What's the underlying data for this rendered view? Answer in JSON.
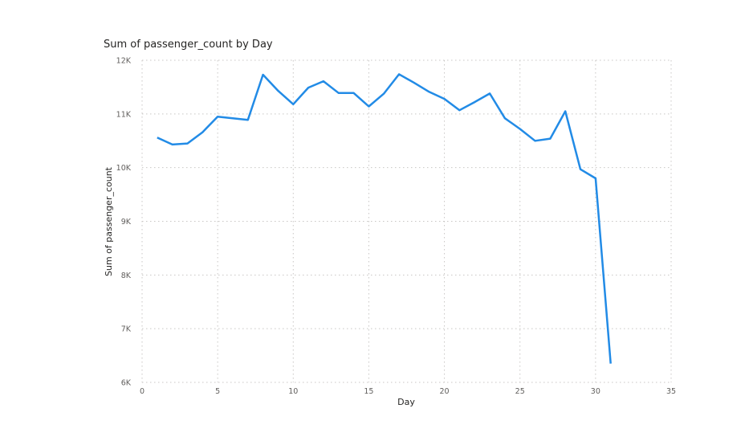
{
  "chart_data": {
    "type": "line",
    "title": "Sum of passenger_count by Day",
    "xlabel": "Day",
    "ylabel": "Sum of passenger_count",
    "xlim": [
      0,
      35
    ],
    "ylim": [
      6000,
      12000
    ],
    "x_ticks": [
      0,
      5,
      10,
      15,
      20,
      25,
      30,
      35
    ],
    "x_tick_labels": [
      "0",
      "5",
      "10",
      "15",
      "20",
      "25",
      "30",
      "35"
    ],
    "y_ticks": [
      6000,
      7000,
      8000,
      9000,
      10000,
      11000,
      12000
    ],
    "y_tick_labels": [
      "6K",
      "7K",
      "8K",
      "9K",
      "10K",
      "11K",
      "12K"
    ],
    "grid": true,
    "legend": "none",
    "series": [
      {
        "color": "#228be6",
        "x": [
          1,
          2,
          3,
          4,
          5,
          6,
          7,
          8,
          9,
          10,
          11,
          12,
          13,
          14,
          15,
          16,
          17,
          18,
          19,
          20,
          21,
          22,
          23,
          24,
          25,
          26,
          27,
          28,
          29,
          30,
          31
        ],
        "values": [
          10560,
          10430,
          10450,
          10660,
          10950,
          10920,
          10890,
          11730,
          11430,
          11180,
          11490,
          11610,
          11390,
          11390,
          11140,
          11380,
          11740,
          11580,
          11410,
          11280,
          11070,
          11220,
          11380,
          10920,
          10720,
          10500,
          10540,
          11050,
          9970,
          9800,
          6350
        ]
      }
    ]
  }
}
